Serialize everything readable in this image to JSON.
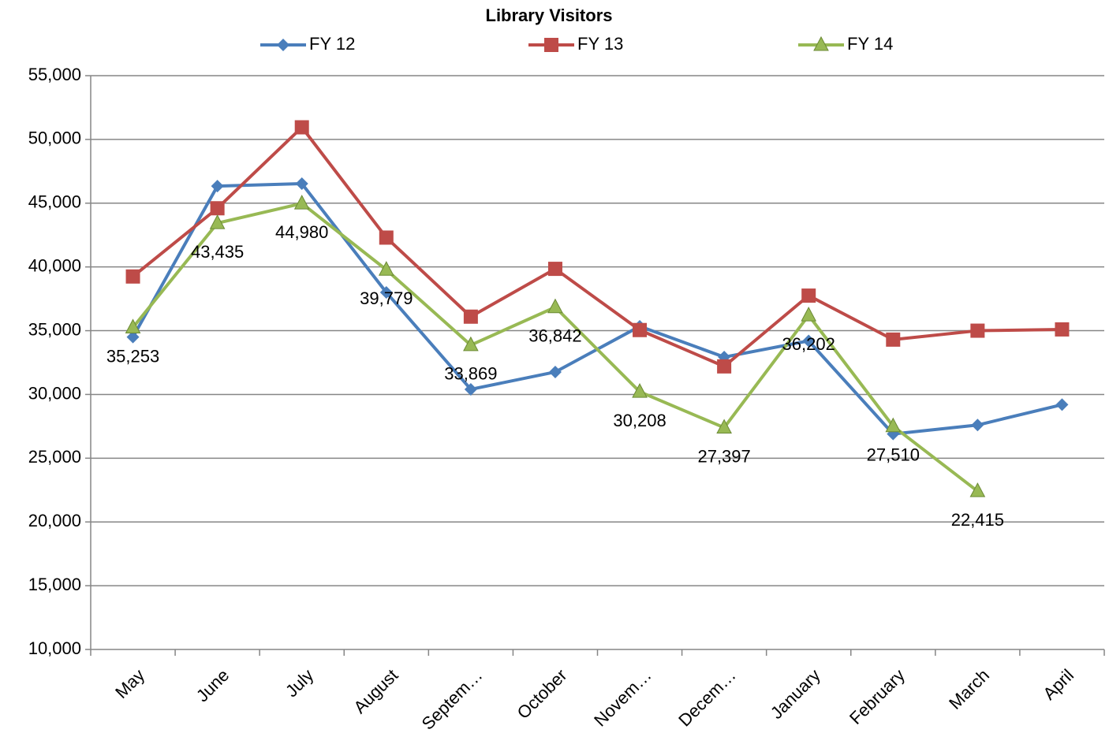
{
  "chart_data": {
    "type": "line",
    "title": "Library Visitors",
    "categories": [
      "May",
      "June",
      "July",
      "August",
      "Septem…",
      "October",
      "Novem…",
      "Decem…",
      "January",
      "February",
      "March",
      "April"
    ],
    "series": [
      {
        "name": "FY 12",
        "color": "#4a7ebb",
        "marker": "diamond",
        "values": [
          34500,
          46340,
          46530,
          38000,
          30400,
          31760,
          35340,
          32930,
          34200,
          26900,
          27600,
          29200
        ]
      },
      {
        "name": "FY 13",
        "color": "#be4b48",
        "marker": "square",
        "values": [
          39250,
          44600,
          50950,
          42300,
          36100,
          39850,
          35050,
          32200,
          37750,
          34300,
          35000,
          35100
        ]
      },
      {
        "name": "FY 14",
        "color": "#98b954",
        "marker": "triangle",
        "values": [
          35253,
          43435,
          44980,
          39779,
          33869,
          36842,
          30208,
          27397,
          36202,
          27510,
          22415,
          null
        ],
        "value_labels": [
          "35,253",
          "43,435",
          "44,980",
          "39,779",
          "33,869",
          "36,842",
          "30,208",
          "27,397",
          "36,202",
          "27,510",
          "22,415",
          null
        ]
      }
    ],
    "ylim": [
      10000,
      55000
    ],
    "yticks": [
      {
        "value": 10000,
        "label": "10,000"
      },
      {
        "value": 15000,
        "label": "15,000"
      },
      {
        "value": 20000,
        "label": "20,000"
      },
      {
        "value": 25000,
        "label": "25,000"
      },
      {
        "value": 30000,
        "label": "30,000"
      },
      {
        "value": 35000,
        "label": "35,000"
      },
      {
        "value": 40000,
        "label": "40,000"
      },
      {
        "value": 45000,
        "label": "45,000"
      },
      {
        "value": 50000,
        "label": "50,000"
      },
      {
        "value": 55000,
        "label": "55,000"
      }
    ],
    "grid": true,
    "legend": "top"
  }
}
